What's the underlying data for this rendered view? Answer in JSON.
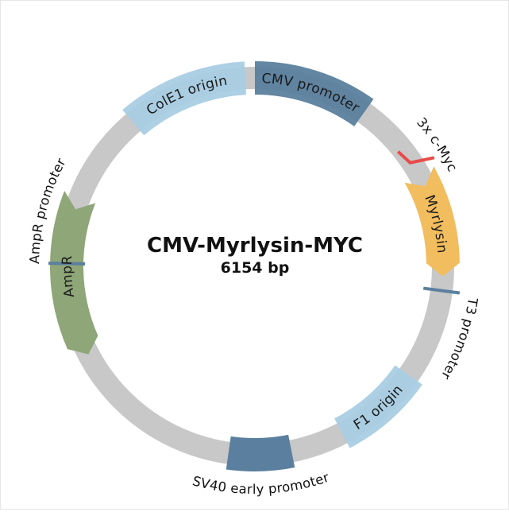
{
  "plasmid": {
    "name": "CMV-Myrlysin-MYC",
    "size_label": "6154 bp",
    "total_bp": 6154
  },
  "colors": {
    "backbone": "#c8c8c8",
    "cmv_promoter": "#5b7f9e",
    "colE1_origin": "#a9cde4",
    "ampr": "#8fa678",
    "myrlysin": "#f2bd5e",
    "c_myc_tag": "#e84a4a",
    "f1_origin": "#a9cde4",
    "sv40_promoter": "#5b7f9e",
    "small_promoter": "#5b7f9e"
  },
  "features": [
    {
      "id": "cmv-promoter",
      "label": "CMV promoter",
      "start": 0,
      "end": 605,
      "kind": "box"
    },
    {
      "id": "colE1-origin",
      "label": "ColE1 origin",
      "start": 5465,
      "end": 6104,
      "kind": "box"
    },
    {
      "id": "ampr",
      "label": "AmpR",
      "start": 4140,
      "end": 4985,
      "kind": "arrow-ccw"
    },
    {
      "id": "myrlysin",
      "label": "Myrlysin",
      "start": 1040,
      "end": 1590,
      "kind": "arrow-cw"
    },
    {
      "id": "f1-origin",
      "label": "F1 origin",
      "start": 2140,
      "end": 2605,
      "kind": "box"
    },
    {
      "id": "sv40-early-promoter",
      "label": "SV40 early promoter",
      "start": 2885,
      "end": 3215,
      "kind": "box"
    }
  ],
  "external_labels": [
    {
      "id": "c-myc",
      "label": "3x c-Myc",
      "bp": 980
    },
    {
      "id": "t3-promoter",
      "label": "T3 promoter",
      "bp": 1665
    },
    {
      "id": "sv40-label",
      "label": "SV40 early promoter",
      "bp": 3050
    },
    {
      "id": "ampr-promoter",
      "label": "AmpR promoter",
      "bp": 4630
    }
  ],
  "ticks": [
    {
      "id": "t3-promoter-mark",
      "bp": 1665
    },
    {
      "id": "ampr-promoter-mark",
      "bp": 4630
    }
  ],
  "tag": {
    "id": "c-myc-tag",
    "bp": 980
  }
}
